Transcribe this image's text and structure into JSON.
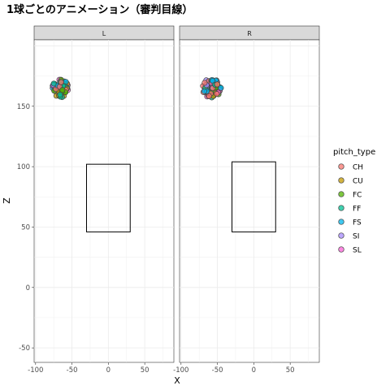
{
  "chart_data": {
    "type": "scatter",
    "title": "1球ごとのアニメーション（審判目線）",
    "xlabel": "X",
    "ylabel": "Z",
    "facets": [
      "L",
      "R"
    ],
    "xlim": [
      -102,
      90
    ],
    "ylim": [
      -62,
      205
    ],
    "x_ticks": [
      -100,
      -50,
      0,
      50
    ],
    "y_ticks": [
      -50,
      0,
      50,
      100,
      150
    ],
    "grid": true,
    "legend_title": "pitch_type",
    "legend_position": "right",
    "series": [
      {
        "name": "CH",
        "color": "#F8766D"
      },
      {
        "name": "CU",
        "color": "#C49A00"
      },
      {
        "name": "FC",
        "color": "#53B400"
      },
      {
        "name": "FF",
        "color": "#00C094"
      },
      {
        "name": "FS",
        "color": "#00B6EB"
      },
      {
        "name": "SI",
        "color": "#A58AFF"
      },
      {
        "name": "SL",
        "color": "#FB61D7"
      }
    ],
    "strike_zones": [
      {
        "facet": "L",
        "x": [
          -30,
          30
        ],
        "z": [
          46,
          102
        ]
      },
      {
        "facet": "R",
        "x": [
          -30,
          30
        ],
        "z": [
          46,
          104
        ]
      }
    ],
    "pitch_clusters": [
      {
        "facet": "L",
        "x_center": -66,
        "z_center": 165,
        "x_spread": 11,
        "z_spread": 5
      },
      {
        "facet": "R",
        "x_center": -58,
        "z_center": 165,
        "x_spread": 13,
        "z_spread": 5
      }
    ]
  }
}
